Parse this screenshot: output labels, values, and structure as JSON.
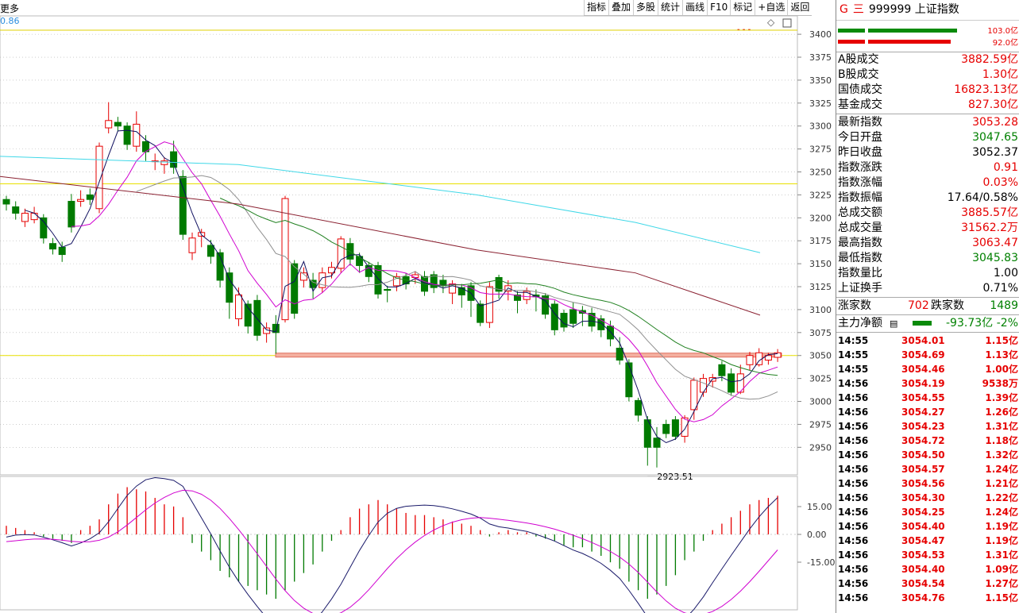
{
  "toolbar": {
    "more_label": "更多",
    "buttons": [
      "指标",
      "叠加",
      "多股",
      "统计",
      "画线",
      "F10",
      "标记",
      "+自选",
      "返回"
    ]
  },
  "chart": {
    "ma_value_label": "0.86",
    "low_annotation": "2923.51",
    "price_axis_labels": [
      "3400",
      "3375",
      "3350",
      "3325",
      "3300",
      "3275",
      "3250",
      "3225",
      "3200",
      "3175",
      "3150",
      "3125",
      "3100",
      "3075",
      "3050",
      "3025",
      "3000",
      "2975",
      "2950"
    ],
    "macd_axis_labels": [
      "15.00",
      "0.00",
      "-15.00"
    ]
  },
  "chart_data": {
    "type": "candlestick",
    "ylim": [
      2920,
      3420
    ],
    "low_mark": 2923.51,
    "horizontal_lines": [
      3237,
      3050
    ],
    "candles": [
      [
        3220,
        3215,
        3224,
        3208
      ],
      [
        3212,
        3205,
        3218,
        3198
      ],
      [
        3196,
        3205,
        3210,
        3190
      ],
      [
        3198,
        3205,
        3212,
        3194
      ],
      [
        3200,
        3178,
        3204,
        3172
      ],
      [
        3172,
        3166,
        3178,
        3160
      ],
      [
        3168,
        3160,
        3174,
        3152
      ],
      [
        3218,
        3190,
        3226,
        3184
      ],
      [
        3218,
        3220,
        3230,
        3212
      ],
      [
        3225,
        3220,
        3232,
        3214
      ],
      [
        3210,
        3278,
        3282,
        3205
      ],
      [
        3298,
        3306,
        3326,
        3292
      ],
      [
        3304,
        3300,
        3310,
        3294
      ],
      [
        3300,
        3280,
        3304,
        3274
      ],
      [
        3278,
        3302,
        3316,
        3272
      ],
      [
        3283,
        3272,
        3290,
        3262
      ],
      [
        3262,
        3262,
        3270,
        3252
      ],
      [
        3258,
        3262,
        3266,
        3248
      ],
      [
        3272,
        3255,
        3284,
        3248
      ],
      [
        3245,
        3182,
        3252,
        3176
      ],
      [
        3162,
        3178,
        3184,
        3154
      ],
      [
        3180,
        3184,
        3188,
        3168
      ],
      [
        3170,
        3158,
        3176,
        3150
      ],
      [
        3162,
        3132,
        3166,
        3124
      ],
      [
        3140,
        3108,
        3146,
        3090
      ],
      [
        3090,
        3116,
        3124,
        3082
      ],
      [
        3106,
        3082,
        3110,
        3074
      ],
      [
        3110,
        3072,
        3116,
        3066
      ],
      [
        3074,
        3080,
        3086,
        3064
      ],
      [
        3084,
        3075,
        3094,
        3052
      ],
      [
        3089,
        3221,
        3224,
        3086
      ],
      [
        3150,
        3096,
        3154,
        3090
      ],
      [
        3132,
        3140,
        3146,
        3124
      ],
      [
        3132,
        3124,
        3140,
        3112
      ],
      [
        3124,
        3140,
        3146,
        3118
      ],
      [
        3140,
        3146,
        3152,
        3134
      ],
      [
        3145,
        3177,
        3180,
        3140
      ],
      [
        3172,
        3155,
        3178,
        3148
      ],
      [
        3158,
        3148,
        3162,
        3140
      ],
      [
        3148,
        3136,
        3152,
        3130
      ],
      [
        3148,
        3117,
        3152,
        3112
      ],
      [
        3122,
        3121,
        3126,
        3108
      ],
      [
        3126,
        3136,
        3140,
        3120
      ],
      [
        3136,
        3128,
        3140,
        3122
      ],
      [
        3135,
        3138,
        3142,
        3128
      ],
      [
        3136,
        3120,
        3142,
        3115
      ],
      [
        3138,
        3124,
        3142,
        3118
      ],
      [
        3132,
        3126,
        3138,
        3118
      ],
      [
        3118,
        3128,
        3132,
        3106
      ],
      [
        3124,
        3116,
        3128,
        3102
      ],
      [
        3126,
        3110,
        3130,
        3092
      ],
      [
        3106,
        3086,
        3110,
        3082
      ],
      [
        3086,
        3125,
        3130,
        3080
      ],
      [
        3135,
        3120,
        3138,
        3112
      ],
      [
        3120,
        3126,
        3132,
        3110
      ],
      [
        3116,
        3110,
        3120,
        3096
      ],
      [
        3111,
        3120,
        3124,
        3106
      ],
      [
        3116,
        3114,
        3122,
        3098
      ],
      [
        3115,
        3095,
        3118,
        3090
      ],
      [
        3106,
        3078,
        3110,
        3072
      ],
      [
        3096,
        3081,
        3100,
        3076
      ],
      [
        3100,
        3085,
        3108,
        3080
      ],
      [
        3099,
        3096,
        3104,
        3082
      ],
      [
        3096,
        3082,
        3102,
        3076
      ],
      [
        3090,
        3078,
        3094,
        3070
      ],
      [
        3082,
        3068,
        3088,
        3060
      ],
      [
        3058,
        3045,
        3070,
        3040
      ],
      [
        3042,
        3005,
        3046,
        3000
      ],
      [
        3001,
        2985,
        3004,
        2978
      ],
      [
        2980,
        2950,
        2984,
        2930
      ],
      [
        2960,
        2950,
        2972,
        2928
      ],
      [
        2975,
        2965,
        2980,
        2960
      ],
      [
        2980,
        2962,
        2984,
        2958
      ],
      [
        2962,
        2982,
        2985,
        2955
      ],
      [
        2991,
        3023,
        3026,
        2980
      ],
      [
        3010,
        3025,
        3030,
        3005
      ],
      [
        3022,
        3026,
        3030,
        3015
      ],
      [
        3040,
        3028,
        3044,
        3022
      ],
      [
        3030,
        3010,
        3036,
        3006
      ],
      [
        3010,
        3030,
        3040,
        3008
      ],
      [
        3040,
        3050,
        3054,
        3034
      ],
      [
        3040,
        3053,
        3058,
        3038
      ],
      [
        3045,
        3050,
        3053,
        3040
      ],
      [
        3048,
        3053,
        3057,
        3043
      ]
    ],
    "macd_hist": [
      4,
      3,
      2,
      1,
      -1,
      -2,
      -3,
      -4,
      2,
      4,
      7,
      14,
      19,
      22,
      21,
      20,
      17,
      14,
      13,
      8,
      -4,
      -8,
      -12,
      -17,
      -20,
      -22,
      -24,
      -26,
      -28,
      -30,
      -26,
      -22,
      -18,
      -14,
      -8,
      -3,
      2,
      8,
      12,
      14,
      16,
      14,
      12,
      10,
      9,
      9,
      8,
      7,
      6,
      5,
      4,
      2,
      -1,
      1,
      2,
      1,
      1,
      -1,
      -2,
      -3,
      -5,
      -6,
      -6,
      -8,
      -10,
      -13,
      -16,
      -22,
      -26,
      -30,
      -28,
      -24,
      -19,
      -12,
      -8,
      -3,
      2,
      5,
      8,
      11,
      14,
      16,
      17,
      18
    ]
  },
  "right_panel": {
    "title_g": "G",
    "title_eq": "三",
    "code": "999999",
    "name": "上证指数",
    "vol_top": "103.0亿",
    "vol_bot": "92.0亿",
    "rows1": [
      {
        "label": "A股成交",
        "value": "3882.59亿",
        "color": "red"
      },
      {
        "label": "B股成交",
        "value": "1.30亿",
        "color": "red"
      },
      {
        "label": "国债成交",
        "value": "16823.13亿",
        "color": "red"
      },
      {
        "label": "基金成交",
        "value": "827.30亿",
        "color": "red"
      }
    ],
    "rows2": [
      {
        "label": "最新指数",
        "value": "3053.28",
        "color": "red"
      },
      {
        "label": "今日开盘",
        "value": "3047.65",
        "color": "grn"
      },
      {
        "label": "昨日收盘",
        "value": "3052.37",
        "color": "blk"
      },
      {
        "label": "指数涨跌",
        "value": "0.91",
        "color": "red"
      },
      {
        "label": "指数涨幅",
        "value": "0.03%",
        "color": "red"
      },
      {
        "label": "指数振幅",
        "value": "17.64/0.58%",
        "color": "blk"
      },
      {
        "label": "总成交额",
        "value": "3885.57亿",
        "color": "red"
      },
      {
        "label": "总成交量",
        "value": "31562.2万",
        "color": "red"
      },
      {
        "label": "最高指数",
        "value": "3063.47",
        "color": "red"
      },
      {
        "label": "最低指数",
        "value": "3045.83",
        "color": "grn"
      },
      {
        "label": "指数量比",
        "value": "1.00",
        "color": "blk"
      },
      {
        "label": "上证换手",
        "value": "0.71%",
        "color": "blk"
      }
    ],
    "up_label": "涨家数",
    "up_value": "702",
    "down_label": "跌家数",
    "down_value": "1489",
    "flow_label": "主力净额",
    "flow_value": "-93.73亿",
    "flow_pct": "-2%",
    "ticks": [
      [
        "14:55",
        "3054.01",
        "1.15亿"
      ],
      [
        "14:55",
        "3054.69",
        "1.13亿"
      ],
      [
        "14:55",
        "3054.46",
        "1.00亿"
      ],
      [
        "14:56",
        "3054.19",
        "9538万"
      ],
      [
        "14:56",
        "3054.55",
        "1.39亿"
      ],
      [
        "14:56",
        "3054.27",
        "1.26亿"
      ],
      [
        "14:56",
        "3054.23",
        "1.31亿"
      ],
      [
        "14:56",
        "3054.72",
        "1.18亿"
      ],
      [
        "14:56",
        "3054.50",
        "1.32亿"
      ],
      [
        "14:56",
        "3054.57",
        "1.24亿"
      ],
      [
        "14:56",
        "3054.56",
        "1.21亿"
      ],
      [
        "14:56",
        "3054.30",
        "1.22亿"
      ],
      [
        "14:56",
        "3054.25",
        "1.24亿"
      ],
      [
        "14:56",
        "3054.40",
        "1.19亿"
      ],
      [
        "14:56",
        "3054.47",
        "1.19亿"
      ],
      [
        "14:56",
        "3054.53",
        "1.31亿"
      ],
      [
        "14:56",
        "3054.40",
        "1.09亿"
      ],
      [
        "14:56",
        "3054.54",
        "1.27亿"
      ],
      [
        "14:56",
        "3054.76",
        "1.15亿"
      ]
    ]
  }
}
